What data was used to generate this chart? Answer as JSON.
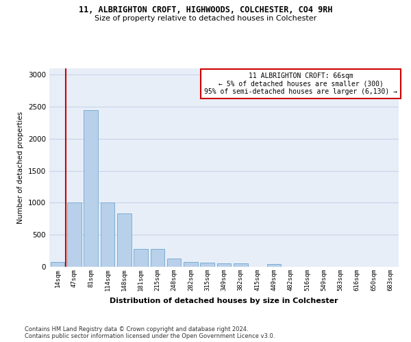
{
  "title1": "11, ALBRIGHTON CROFT, HIGHWOODS, COLCHESTER, CO4 9RH",
  "title2": "Size of property relative to detached houses in Colchester",
  "xlabel": "Distribution of detached houses by size in Colchester",
  "ylabel": "Number of detached properties",
  "footnote1": "Contains HM Land Registry data © Crown copyright and database right 2024.",
  "footnote2": "Contains public sector information licensed under the Open Government Licence v3.0.",
  "annotation_line1": "11 ALBRIGHTON CROFT: 66sqm",
  "annotation_line2": "← 5% of detached houses are smaller (300)",
  "annotation_line3": "95% of semi-detached houses are larger (6,130) →",
  "bar_color": "#b8d0ea",
  "bar_edge_color": "#7aafd4",
  "red_line_color": "#cc0000",
  "annotation_box_edge_color": "#cc0000",
  "background_color": "#ffffff",
  "plot_bg_color": "#e8eef8",
  "grid_color": "#c8d4e8",
  "categories": [
    "14sqm",
    "47sqm",
    "81sqm",
    "114sqm",
    "148sqm",
    "181sqm",
    "215sqm",
    "248sqm",
    "282sqm",
    "315sqm",
    "349sqm",
    "382sqm",
    "415sqm",
    "449sqm",
    "482sqm",
    "516sqm",
    "549sqm",
    "583sqm",
    "616sqm",
    "650sqm",
    "683sqm"
  ],
  "values": [
    75,
    1000,
    2450,
    1000,
    830,
    280,
    280,
    130,
    75,
    60,
    55,
    55,
    0,
    40,
    0,
    0,
    0,
    0,
    0,
    0,
    0
  ],
  "ylim": [
    0,
    3100
  ],
  "yticks": [
    0,
    500,
    1000,
    1500,
    2000,
    2500,
    3000
  ],
  "red_line_x": 0.5
}
